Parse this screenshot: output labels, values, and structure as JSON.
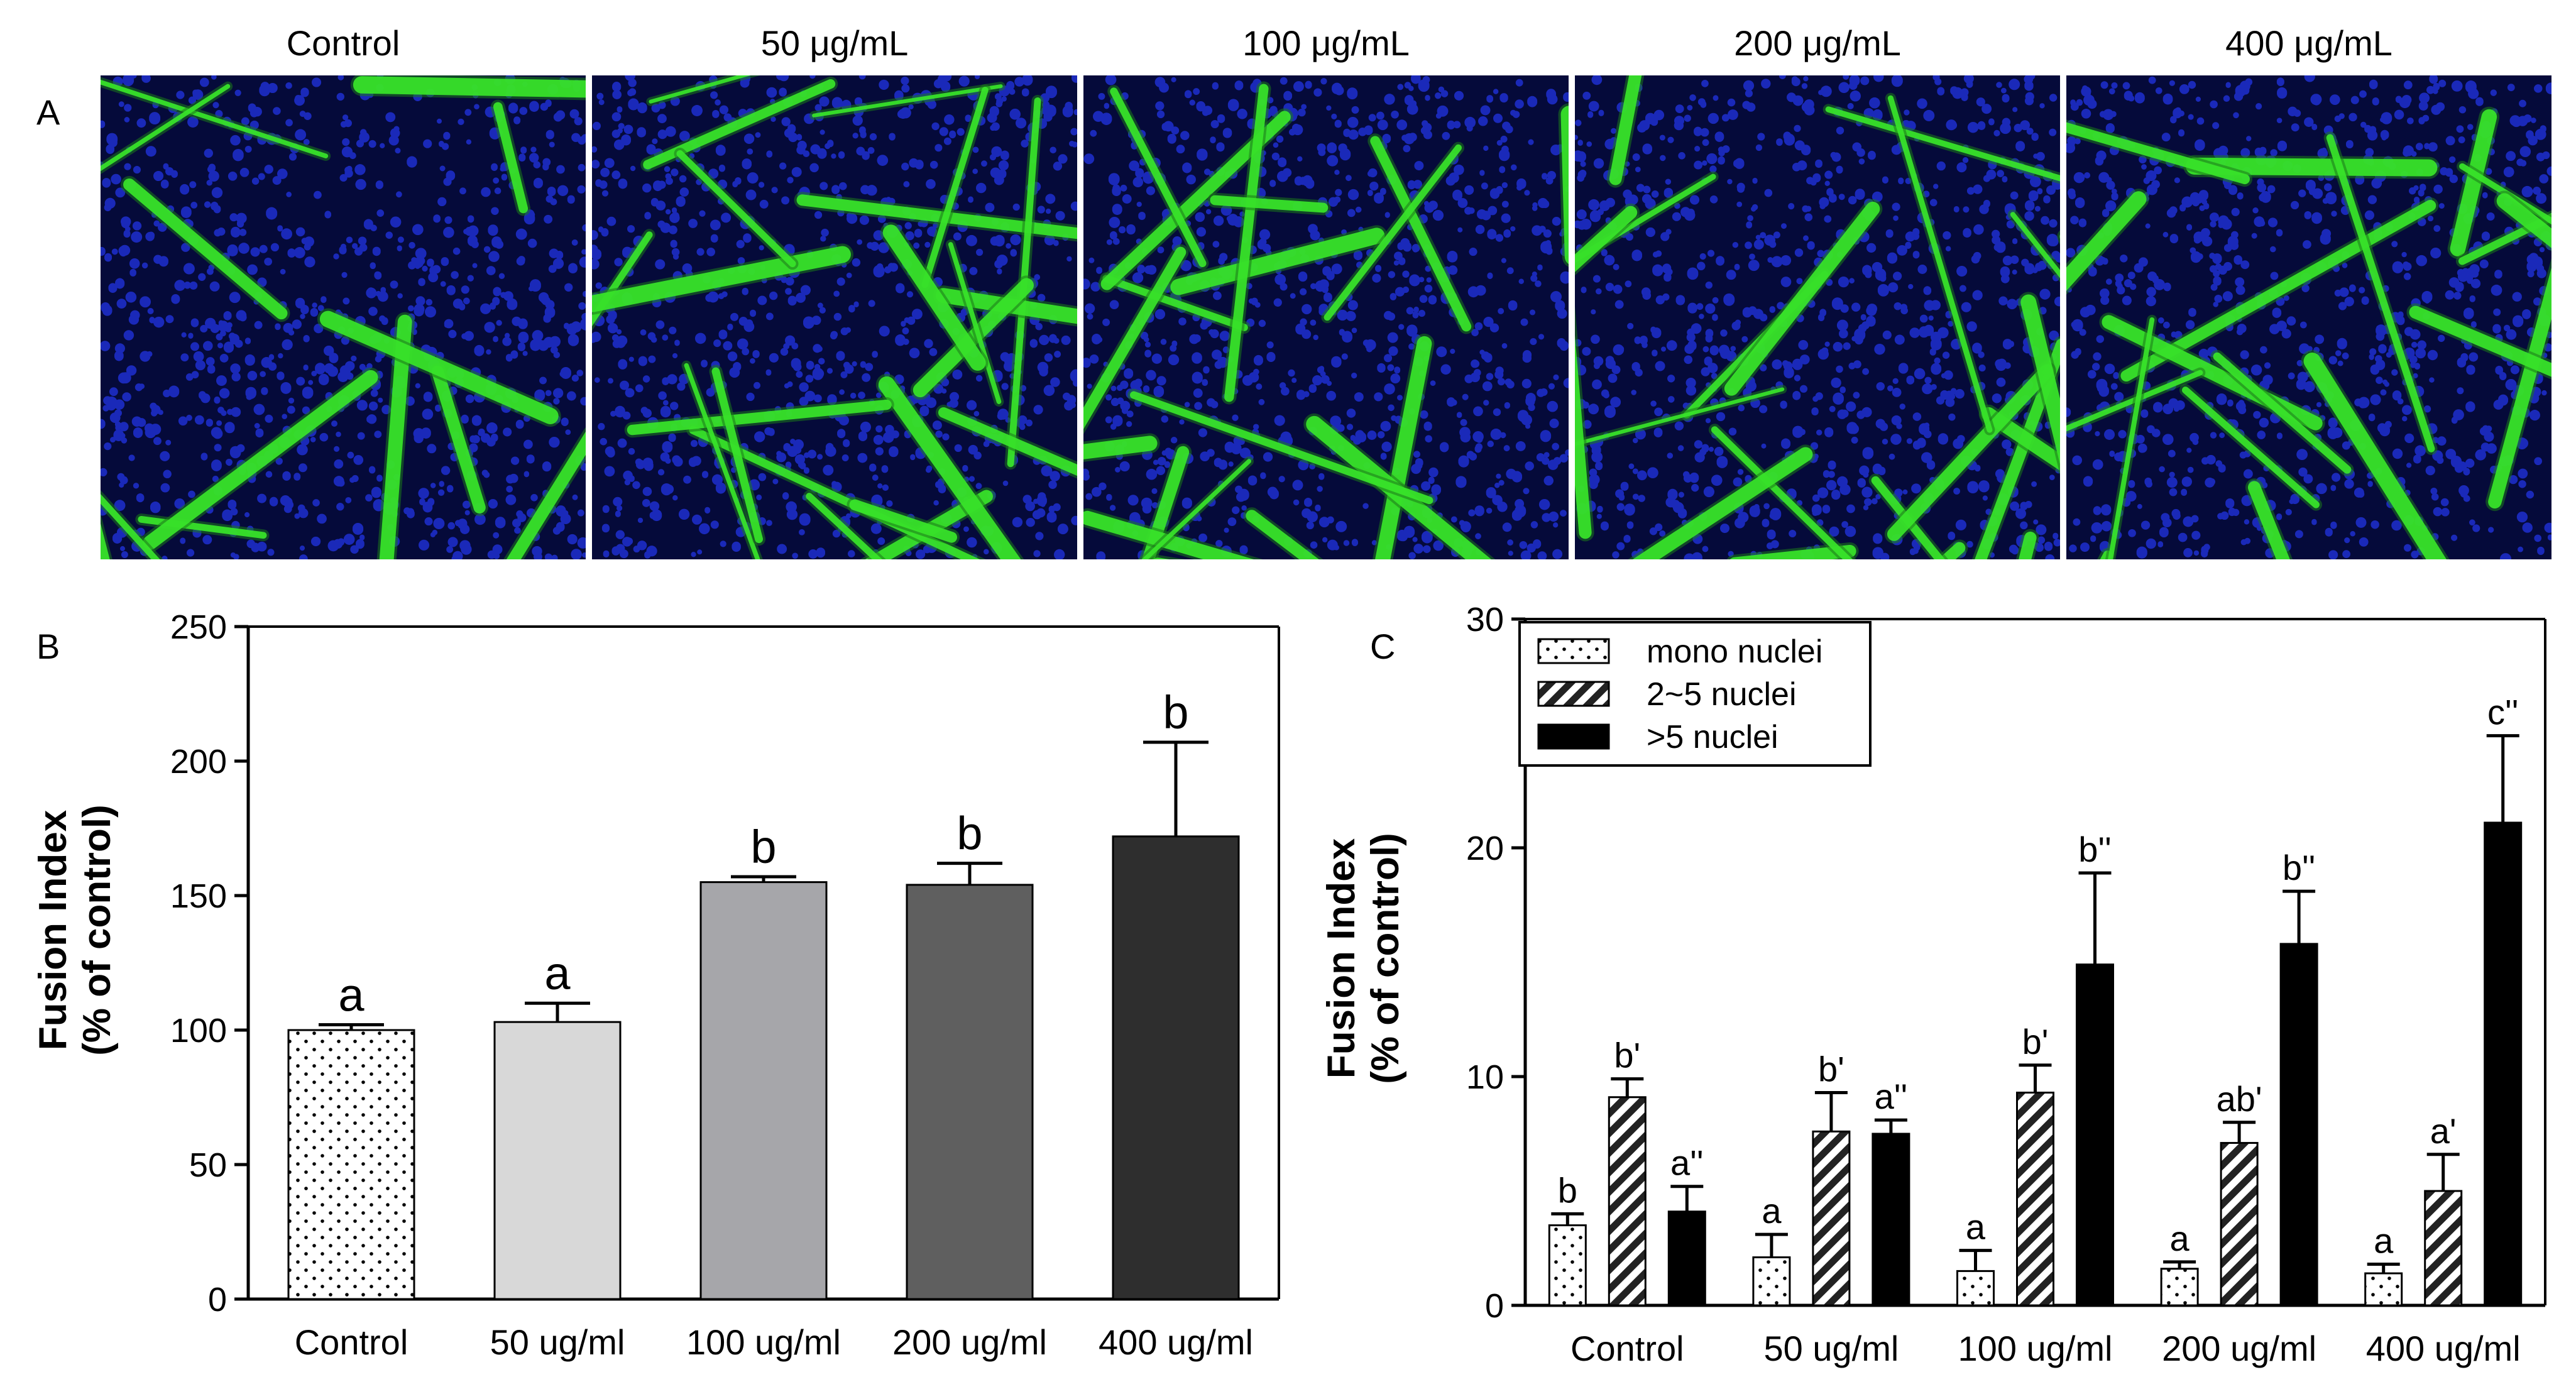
{
  "figure": {
    "panel_a_label": "A",
    "panel_b_label": "B",
    "panel_c_label": "C"
  },
  "panel_a": {
    "images": [
      {
        "caption": "Control",
        "seed": 11,
        "nuclei_color": "#1e2fd0",
        "myotube_color": "#39e62a",
        "myotube_count": 15
      },
      {
        "caption": "50 μg/mL",
        "seed": 23,
        "nuclei_color": "#1e2fd0",
        "myotube_color": "#39e62a",
        "myotube_count": 22
      },
      {
        "caption": "100 μg/mL",
        "seed": 37,
        "nuclei_color": "#1e2fd0",
        "myotube_color": "#39e62a",
        "myotube_count": 22
      },
      {
        "caption": "200 μg/mL",
        "seed": 41,
        "nuclei_color": "#1e2fd0",
        "myotube_color": "#39e62a",
        "myotube_count": 24
      },
      {
        "caption": "400 μg/mL",
        "seed": 53,
        "nuclei_color": "#1e2fd0",
        "myotube_color": "#39e62a",
        "myotube_count": 22
      }
    ]
  },
  "chart_data": [
    {
      "panel": "B",
      "type": "bar",
      "title": "",
      "xlabel": "",
      "ylabel_line1": "Fusion Index",
      "ylabel_line2": "(% of control)",
      "ylim": [
        0,
        250
      ],
      "yticks": [
        0,
        50,
        100,
        150,
        200,
        250
      ],
      "categories": [
        "Control",
        "50 ug/ml",
        "100 ug/ml",
        "200 ug/ml",
        "400 ug/ml"
      ],
      "values": [
        100,
        103,
        155,
        154,
        172
      ],
      "errors": [
        2,
        7,
        2,
        8,
        35
      ],
      "letters": [
        "a",
        "a",
        "b",
        "b",
        "b"
      ],
      "bar_fills": [
        "dots",
        "#d8d8d8",
        "#a6a6aa",
        "#5f5f5f",
        "#2e2e2e"
      ]
    },
    {
      "panel": "C",
      "type": "bar",
      "title": "",
      "xlabel": "",
      "ylabel_line1": "Fusion Index",
      "ylabel_line2": "(% of control)",
      "ylim": [
        0,
        30
      ],
      "yticks": [
        0,
        10,
        20,
        30
      ],
      "categories": [
        "Control",
        "50 ug/ml",
        "100 ug/ml",
        "200 ug/ml",
        "400 ug/ml"
      ],
      "legend_position": "top-left",
      "series": [
        {
          "name": "mono nuclei",
          "fill": "dots",
          "values": [
            3.5,
            2.1,
            1.5,
            1.6,
            1.4
          ],
          "errors": [
            0.5,
            1.0,
            0.9,
            0.3,
            0.4
          ],
          "letters": [
            "b",
            "a",
            "a",
            "a",
            "a"
          ]
        },
        {
          "name": "2~5 nuclei",
          "fill": "hatch",
          "values": [
            9.1,
            7.6,
            9.3,
            7.1,
            5.0
          ],
          "errors": [
            0.8,
            1.7,
            1.2,
            0.9,
            1.6
          ],
          "letters": [
            "b'",
            "b'",
            "b'",
            "ab'",
            "a'"
          ]
        },
        {
          "name": ">5 nuclei",
          "fill": "#000000",
          "values": [
            4.1,
            7.5,
            14.9,
            15.8,
            21.1
          ],
          "errors": [
            1.1,
            0.6,
            4.0,
            2.3,
            3.8
          ],
          "letters": [
            "a''",
            "a''",
            "b''",
            "b''",
            "c''"
          ]
        }
      ]
    }
  ]
}
